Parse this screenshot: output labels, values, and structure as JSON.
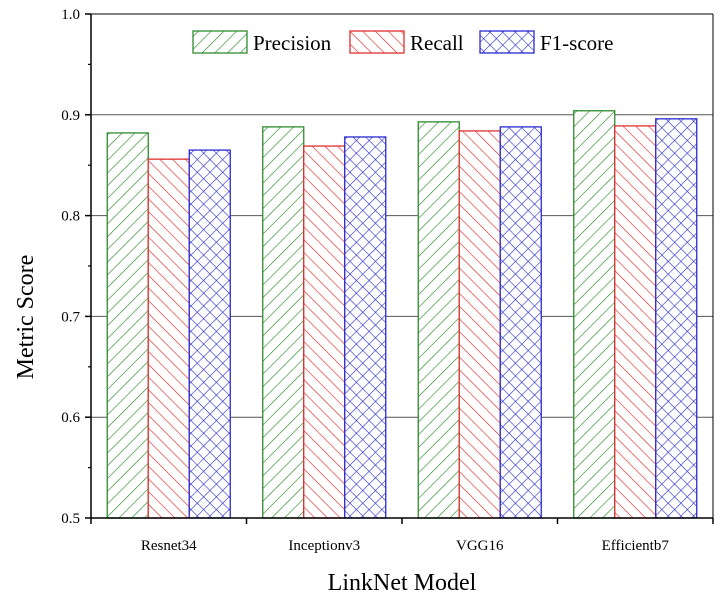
{
  "chart_data": {
    "type": "bar",
    "title": "",
    "xlabel": "LinkNet Model",
    "ylabel": "Metric Score",
    "categories": [
      "Resnet34",
      "Inceptionv3",
      "VGG16",
      "Efficientb7"
    ],
    "ylim": [
      0.5,
      1.0
    ],
    "yticks": [
      0.5,
      0.6,
      0.7,
      0.8,
      0.9,
      1.0
    ],
    "ytick_labels": [
      "0.5",
      "0.6",
      "0.7",
      "0.8",
      "0.9",
      "1.0"
    ],
    "grid": true,
    "legend_position": "top-right",
    "series": [
      {
        "name": "Precision",
        "values": [
          0.882,
          0.888,
          0.893,
          0.904
        ],
        "color": "#2e8b2e",
        "hatch": "forward-diagonal"
      },
      {
        "name": "Recall",
        "values": [
          0.856,
          0.869,
          0.884,
          0.889
        ],
        "color": "#e03030",
        "hatch": "back-diagonal"
      },
      {
        "name": "F1-score",
        "values": [
          0.865,
          0.878,
          0.888,
          0.896
        ],
        "color": "#2a2ad0",
        "hatch": "cross"
      }
    ]
  }
}
